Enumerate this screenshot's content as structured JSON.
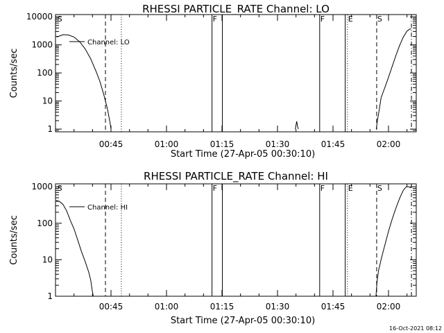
{
  "timestamp": "16-Oct-2021 08:12",
  "chart_data": [
    {
      "type": "line",
      "title": "RHESSI PARTICLE_RATE Channel: LO",
      "xlabel": "Start Time (27-Apr-05 00:30:10)",
      "ylabel": "Counts/sec",
      "y_scale": "log",
      "xlim_minutes": [
        0.0,
        97.5
      ],
      "ylim": [
        0.8,
        12000
      ],
      "x_ticks": [
        {
          "min": 15,
          "label": "00:45"
        },
        {
          "min": 30,
          "label": "01:00"
        },
        {
          "min": 45,
          "label": "01:15"
        },
        {
          "min": 60,
          "label": "01:30"
        },
        {
          "min": 75,
          "label": "01:45"
        },
        {
          "min": 90,
          "label": "02:00"
        }
      ],
      "y_ticks": [
        {
          "value": 1,
          "label": "1"
        },
        {
          "value": 10,
          "label": "10"
        },
        {
          "value": 100,
          "label": "100"
        },
        {
          "value": 1000,
          "label": "1000"
        },
        {
          "value": 10000,
          "label": "10000"
        }
      ],
      "series": [
        {
          "name": "Channel: LO",
          "segments": [
            [
              [
                0.4,
                1900
              ],
              [
                2.0,
                2300
              ],
              [
                3.5,
                2250
              ],
              [
                5.0,
                1900
              ],
              [
                6.5,
                1300
              ],
              [
                8.0,
                720
              ],
              [
                9.5,
                320
              ],
              [
                11.0,
                110
              ],
              [
                12.0,
                50
              ],
              [
                13.0,
                18
              ],
              [
                14.0,
                5.5
              ],
              [
                14.7,
                1.8
              ],
              [
                15.0,
                1.0
              ]
            ],
            [
              [
                64.8,
                1.0
              ],
              [
                65.0,
                1.4
              ],
              [
                65.2,
                1.9
              ],
              [
                65.4,
                1.3
              ],
              [
                65.6,
                1.0
              ]
            ],
            [
              [
                86.7,
                1.0
              ],
              [
                87.0,
                2.0
              ],
              [
                87.5,
                5
              ],
              [
                88.0,
                13
              ],
              [
                89.0,
                30
              ],
              [
                90.0,
                70
              ],
              [
                91.0,
                170
              ],
              [
                92.0,
                420
              ],
              [
                93.0,
                950
              ],
              [
                94.0,
                1900
              ],
              [
                95.0,
                3100
              ],
              [
                95.8,
                3700
              ],
              [
                96.1,
                3700
              ]
            ]
          ]
        }
      ],
      "markers": [
        {
          "label": "S",
          "min": 0.3,
          "style": "none"
        },
        {
          "label": "",
          "min": 13.5,
          "style": "dashed"
        },
        {
          "label": "",
          "min": 17.8,
          "style": "dotted"
        },
        {
          "label": "F",
          "min": 42.3,
          "style": "solid"
        },
        {
          "label": "",
          "min": 45.1,
          "style": "solid"
        },
        {
          "label": "F",
          "min": 71.4,
          "style": "solid"
        },
        {
          "label": "",
          "min": 78.3,
          "style": "solid"
        },
        {
          "label": "E",
          "min": 78.9,
          "style": "dotted"
        },
        {
          "label": "S",
          "min": 86.8,
          "style": "dashed"
        },
        {
          "label": "",
          "min": 96.2,
          "style": "dashdot"
        }
      ]
    },
    {
      "type": "line",
      "title": "RHESSI PARTICLE_RATE Channel: HI",
      "xlabel": "Start Time (27-Apr-05 00:30:10)",
      "ylabel": "Counts/sec",
      "y_scale": "log",
      "xlim_minutes": [
        0.0,
        97.5
      ],
      "ylim": [
        1,
        1200
      ],
      "x_ticks": [
        {
          "min": 15,
          "label": "00:45"
        },
        {
          "min": 30,
          "label": "01:00"
        },
        {
          "min": 45,
          "label": "01:15"
        },
        {
          "min": 60,
          "label": "01:30"
        },
        {
          "min": 75,
          "label": "01:45"
        },
        {
          "min": 90,
          "label": "02:00"
        }
      ],
      "y_ticks": [
        {
          "value": 1,
          "label": "1"
        },
        {
          "value": 10,
          "label": "10"
        },
        {
          "value": 100,
          "label": "100"
        },
        {
          "value": 1000,
          "label": "1000"
        }
      ],
      "series": [
        {
          "name": "Channel: HI",
          "segments": [
            [
              [
                0.2,
                420
              ],
              [
                1.0,
                400
              ],
              [
                2.0,
                330
              ],
              [
                3.0,
                220
              ],
              [
                4.0,
                120
              ],
              [
                5.0,
                70
              ],
              [
                6.0,
                35
              ],
              [
                7.0,
                17
              ],
              [
                8.0,
                9
              ],
              [
                9.0,
                4.5
              ],
              [
                9.5,
                2.8
              ],
              [
                9.9,
                1.5
              ],
              [
                10.2,
                1.0
              ]
            ],
            [
              [
                86.6,
                1.0
              ],
              [
                86.9,
                2.5
              ],
              [
                87.3,
                5
              ],
              [
                88.0,
                10
              ],
              [
                88.5,
                16
              ],
              [
                89.0,
                25
              ],
              [
                90.0,
                60
              ],
              [
                91.0,
                130
              ],
              [
                92.0,
                260
              ],
              [
                93.0,
                480
              ],
              [
                94.0,
                800
              ],
              [
                94.8,
                1000
              ],
              [
                95.5,
                1000
              ],
              [
                96.0,
                930
              ]
            ]
          ]
        }
      ],
      "markers": [
        {
          "label": "S",
          "min": 0.3,
          "style": "none"
        },
        {
          "label": "",
          "min": 13.5,
          "style": "dashed"
        },
        {
          "label": "",
          "min": 17.8,
          "style": "dotted"
        },
        {
          "label": "F",
          "min": 42.3,
          "style": "solid"
        },
        {
          "label": "",
          "min": 45.1,
          "style": "solid"
        },
        {
          "label": "F",
          "min": 71.4,
          "style": "solid"
        },
        {
          "label": "",
          "min": 78.3,
          "style": "solid"
        },
        {
          "label": "E",
          "min": 78.9,
          "style": "dotted"
        },
        {
          "label": "S",
          "min": 86.8,
          "style": "dashed"
        },
        {
          "label": "",
          "min": 96.2,
          "style": "dashdot"
        }
      ]
    }
  ]
}
